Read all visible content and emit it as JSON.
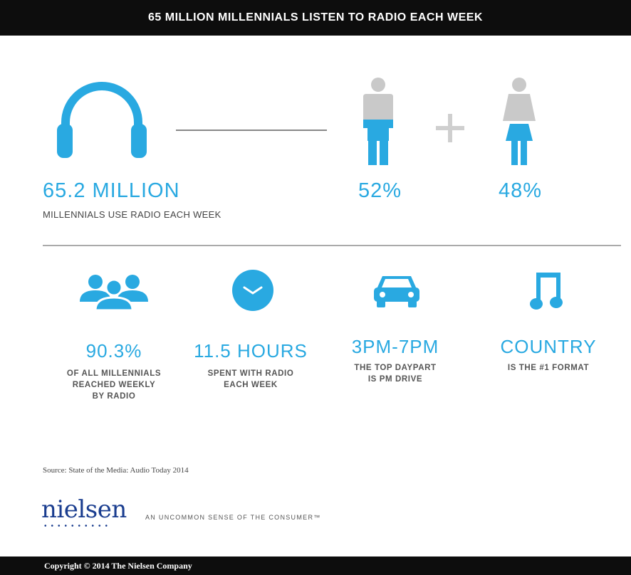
{
  "header": {
    "title": "65 MILLION MILLENNIALS LISTEN TO RADIO EACH WEEK"
  },
  "hero": {
    "stat": "65.2 MILLION",
    "caption": "MILLENNIALS USE RADIO EACH WEEK",
    "male_pct": "52%",
    "female_pct": "48%",
    "plus": "+"
  },
  "stats": [
    {
      "value": "90.3%",
      "lines": [
        "OF ALL MILLENNIALS",
        "REACHED WEEKLY",
        "BY RADIO"
      ],
      "icon": "people-group-icon"
    },
    {
      "value": "11.5 HOURS",
      "lines": [
        "SPENT WITH RADIO",
        "EACH WEEK"
      ],
      "icon": "clock-icon"
    },
    {
      "value": "3PM-7PM",
      "lines": [
        "THE TOP DAYPART",
        "IS PM DRIVE"
      ],
      "icon": "car-icon"
    },
    {
      "value": "COUNTRY",
      "lines": [
        "IS THE #1 FORMAT"
      ],
      "icon": "music-note-icon"
    }
  ],
  "source": "Source: State of the Media: Audio Today 2014",
  "brand": {
    "logo": "nielsen",
    "tagline": "AN UNCOMMON SENSE OF THE CONSUMER™"
  },
  "footer": {
    "copyright": "Copyright © 2014 The Nielsen Company"
  },
  "colors": {
    "accent": "#29a9e1",
    "gray_figure": "#c9c9c9",
    "bar": "#0d0d0d",
    "brand_blue": "#1a3d8f"
  }
}
